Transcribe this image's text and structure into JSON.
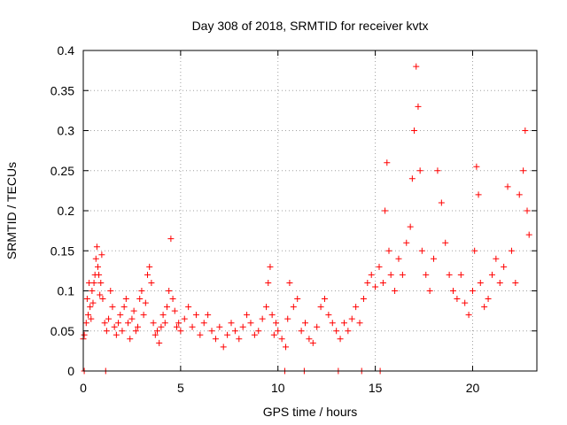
{
  "chart_data": {
    "type": "scatter",
    "title": "Day 308 of 2018, SRMTID for receiver kvtx",
    "xlabel": "GPS time / hours",
    "ylabel": "SRMTID / TECUs",
    "xlim": [
      0,
      23.3
    ],
    "ylim": [
      0,
      0.4
    ],
    "x_ticks": [
      0,
      5,
      10,
      15,
      20
    ],
    "x_tick_labels": [
      "0",
      "5",
      "10",
      "15",
      "20"
    ],
    "y_ticks": [
      0,
      0.05,
      0.1,
      0.15,
      0.2,
      0.25,
      0.3,
      0.35,
      0.4
    ],
    "y_tick_labels": [
      "0",
      "0.05",
      "0.1",
      "0.15",
      "0.2",
      "0.25",
      "0.3",
      "0.35",
      "0.4"
    ],
    "grid": true,
    "marker": "+",
    "color": "#ff0000",
    "series": [
      {
        "name": "SRMTID",
        "points": [
          [
            0.0,
            0.04
          ],
          [
            0.05,
            0.045
          ],
          [
            0.15,
            0.06
          ],
          [
            0.2,
            0.09
          ],
          [
            0.25,
            0.07
          ],
          [
            0.3,
            0.11
          ],
          [
            0.35,
            0.08
          ],
          [
            0.4,
            0.065
          ],
          [
            0.45,
            0.1
          ],
          [
            0.5,
            0.085
          ],
          [
            0.55,
            0.11
          ],
          [
            0.6,
            0.12
          ],
          [
            0.65,
            0.14
          ],
          [
            0.7,
            0.155
          ],
          [
            0.75,
            0.13
          ],
          [
            0.8,
            0.12
          ],
          [
            0.85,
            0.095
          ],
          [
            0.9,
            0.11
          ],
          [
            0.95,
            0.145
          ],
          [
            1.0,
            0.09
          ],
          [
            1.1,
            0.06
          ],
          [
            1.2,
            0.05
          ],
          [
            1.3,
            0.065
          ],
          [
            1.4,
            0.1
          ],
          [
            1.5,
            0.08
          ],
          [
            1.6,
            0.055
          ],
          [
            1.7,
            0.045
          ],
          [
            1.8,
            0.06
          ],
          [
            1.9,
            0.07
          ],
          [
            2.0,
            0.05
          ],
          [
            2.1,
            0.08
          ],
          [
            2.2,
            0.09
          ],
          [
            2.3,
            0.06
          ],
          [
            2.4,
            0.04
          ],
          [
            2.5,
            0.065
          ],
          [
            2.6,
            0.075
          ],
          [
            2.7,
            0.05
          ],
          [
            2.8,
            0.055
          ],
          [
            2.9,
            0.09
          ],
          [
            3.0,
            0.1
          ],
          [
            3.1,
            0.07
          ],
          [
            3.2,
            0.085
          ],
          [
            3.3,
            0.12
          ],
          [
            3.4,
            0.13
          ],
          [
            3.5,
            0.11
          ],
          [
            3.6,
            0.06
          ],
          [
            3.7,
            0.045
          ],
          [
            3.8,
            0.05
          ],
          [
            3.9,
            0.035
          ],
          [
            4.0,
            0.055
          ],
          [
            4.1,
            0.07
          ],
          [
            4.2,
            0.06
          ],
          [
            4.3,
            0.08
          ],
          [
            4.4,
            0.1
          ],
          [
            4.5,
            0.165
          ],
          [
            4.6,
            0.09
          ],
          [
            4.7,
            0.075
          ],
          [
            4.8,
            0.055
          ],
          [
            4.9,
            0.06
          ],
          [
            5.0,
            0.05
          ],
          [
            5.2,
            0.065
          ],
          [
            5.4,
            0.08
          ],
          [
            5.6,
            0.055
          ],
          [
            5.8,
            0.07
          ],
          [
            6.0,
            0.045
          ],
          [
            6.2,
            0.06
          ],
          [
            6.4,
            0.07
          ],
          [
            6.6,
            0.05
          ],
          [
            6.8,
            0.04
          ],
          [
            7.0,
            0.055
          ],
          [
            7.2,
            0.03
          ],
          [
            7.4,
            0.045
          ],
          [
            7.6,
            0.06
          ],
          [
            7.8,
            0.05
          ],
          [
            8.0,
            0.04
          ],
          [
            8.2,
            0.055
          ],
          [
            8.4,
            0.07
          ],
          [
            8.6,
            0.06
          ],
          [
            8.8,
            0.045
          ],
          [
            9.0,
            0.05
          ],
          [
            9.2,
            0.065
          ],
          [
            9.4,
            0.08
          ],
          [
            9.5,
            0.11
          ],
          [
            9.6,
            0.13
          ],
          [
            9.7,
            0.07
          ],
          [
            9.8,
            0.045
          ],
          [
            9.9,
            0.06
          ],
          [
            10.0,
            0.05
          ],
          [
            10.2,
            0.04
          ],
          [
            10.4,
            0.03
          ],
          [
            10.5,
            0.065
          ],
          [
            10.6,
            0.11
          ],
          [
            10.8,
            0.08
          ],
          [
            11.0,
            0.09
          ],
          [
            11.2,
            0.05
          ],
          [
            11.4,
            0.06
          ],
          [
            11.6,
            0.04
          ],
          [
            11.8,
            0.035
          ],
          [
            12.0,
            0.055
          ],
          [
            12.2,
            0.08
          ],
          [
            12.4,
            0.09
          ],
          [
            12.6,
            0.07
          ],
          [
            12.8,
            0.06
          ],
          [
            13.0,
            0.05
          ],
          [
            13.2,
            0.04
          ],
          [
            13.4,
            0.06
          ],
          [
            13.6,
            0.05
          ],
          [
            13.8,
            0.065
          ],
          [
            14.0,
            0.08
          ],
          [
            14.2,
            0.06
          ],
          [
            14.4,
            0.09
          ],
          [
            14.6,
            0.11
          ],
          [
            14.8,
            0.12
          ],
          [
            15.0,
            0.105
          ],
          [
            15.2,
            0.13
          ],
          [
            15.4,
            0.11
          ],
          [
            15.5,
            0.2
          ],
          [
            15.6,
            0.26
          ],
          [
            15.7,
            0.15
          ],
          [
            15.8,
            0.12
          ],
          [
            16.0,
            0.1
          ],
          [
            16.2,
            0.14
          ],
          [
            16.4,
            0.12
          ],
          [
            16.6,
            0.16
          ],
          [
            16.8,
            0.18
          ],
          [
            16.9,
            0.24
          ],
          [
            17.0,
            0.3
          ],
          [
            17.1,
            0.38
          ],
          [
            17.2,
            0.33
          ],
          [
            17.3,
            0.25
          ],
          [
            17.4,
            0.15
          ],
          [
            17.6,
            0.12
          ],
          [
            17.8,
            0.1
          ],
          [
            18.0,
            0.14
          ],
          [
            18.2,
            0.25
          ],
          [
            18.4,
            0.21
          ],
          [
            18.6,
            0.16
          ],
          [
            18.8,
            0.12
          ],
          [
            19.0,
            0.1
          ],
          [
            19.2,
            0.09
          ],
          [
            19.4,
            0.12
          ],
          [
            19.6,
            0.085
          ],
          [
            19.8,
            0.07
          ],
          [
            20.0,
            0.1
          ],
          [
            20.1,
            0.15
          ],
          [
            20.2,
            0.255
          ],
          [
            20.3,
            0.22
          ],
          [
            20.4,
            0.11
          ],
          [
            20.6,
            0.08
          ],
          [
            20.8,
            0.09
          ],
          [
            21.0,
            0.12
          ],
          [
            21.2,
            0.14
          ],
          [
            21.4,
            0.11
          ],
          [
            21.6,
            0.13
          ],
          [
            21.8,
            0.23
          ],
          [
            22.0,
            0.15
          ],
          [
            22.2,
            0.11
          ],
          [
            22.4,
            0.22
          ],
          [
            22.6,
            0.25
          ],
          [
            22.7,
            0.3
          ],
          [
            22.8,
            0.2
          ],
          [
            22.9,
            0.17
          ],
          [
            1.15,
            0.0
          ],
          [
            0.05,
            0.0
          ],
          [
            10.35,
            0.0
          ],
          [
            11.35,
            0.0
          ],
          [
            13.1,
            0.0
          ],
          [
            14.3,
            0.0
          ],
          [
            15.25,
            0.0
          ]
        ]
      }
    ]
  }
}
